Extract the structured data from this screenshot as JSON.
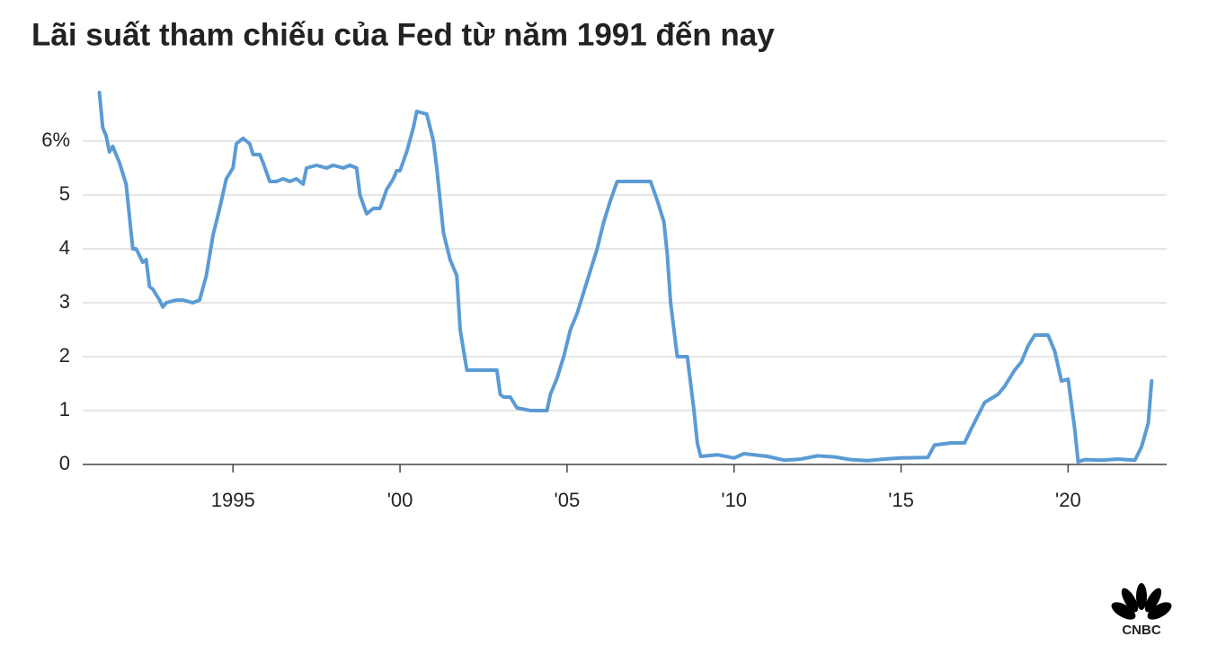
{
  "chart_data": {
    "type": "line",
    "title": "Lãi suất tham chiếu của Fed từ năm 1991 đến nay",
    "color": "#5b9bd5",
    "grid": true,
    "xlim": [
      1990.5,
      2022.95
    ],
    "xticks": [
      1995,
      {
        "value": 2000,
        "label": "'00"
      },
      {
        "value": 2005,
        "label": "'05"
      },
      {
        "value": 2010,
        "label": "'10"
      },
      {
        "value": 2015,
        "label": "'15"
      },
      {
        "value": 2020,
        "label": "'20"
      }
    ],
    "ylim": [
      0,
      7
    ],
    "yticks": [
      0,
      1,
      2,
      3,
      4,
      5,
      {
        "value": 6,
        "label": "6%"
      }
    ],
    "x": [
      1991.0,
      1991.1,
      1991.2,
      1991.3,
      1991.4,
      1991.6,
      1991.8,
      1992.0,
      1992.1,
      1992.3,
      1992.4,
      1992.5,
      1992.6,
      1992.8,
      1992.9,
      1993.0,
      1993.3,
      1993.5,
      1993.8,
      1994.0,
      1994.2,
      1994.4,
      1994.6,
      1994.8,
      1995.0,
      1995.1,
      1995.3,
      1995.5,
      1995.6,
      1995.8,
      1995.9,
      1996.1,
      1996.3,
      1996.5,
      1996.7,
      1996.9,
      1997.1,
      1997.2,
      1997.5,
      1997.8,
      1998.0,
      1998.3,
      1998.5,
      1998.7,
      1998.8,
      1999.0,
      1999.2,
      1999.4,
      1999.6,
      1999.8,
      1999.9,
      2000.0,
      2000.2,
      2000.4,
      2000.5,
      2000.8,
      2001.0,
      2001.1,
      2001.3,
      2001.5,
      2001.7,
      2001.8,
      2002.0,
      2002.3,
      2002.6,
      2002.9,
      2003.0,
      2003.1,
      2003.3,
      2003.5,
      2003.9,
      2004.4,
      2004.5,
      2004.7,
      2004.9,
      2005.1,
      2005.3,
      2005.5,
      2005.7,
      2005.9,
      2006.1,
      2006.3,
      2006.5,
      2007.0,
      2007.5,
      2007.7,
      2007.9,
      2008.0,
      2008.1,
      2008.3,
      2008.6,
      2008.8,
      2008.9,
      2009.0,
      2009.5,
      2010.0,
      2010.3,
      2011.0,
      2011.5,
      2012.0,
      2012.5,
      2013.0,
      2013.5,
      2014.0,
      2014.5,
      2015.0,
      2015.8,
      2016.0,
      2016.5,
      2016.9,
      2017.1,
      2017.5,
      2017.9,
      2018.1,
      2018.4,
      2018.6,
      2018.8,
      2019.0,
      2019.4,
      2019.6,
      2019.8,
      2020.0,
      2020.2,
      2020.3,
      2020.5,
      2021.0,
      2021.5,
      2022.0,
      2022.2,
      2022.4,
      2022.5
    ],
    "values": [
      6.9,
      6.25,
      6.1,
      5.8,
      5.9,
      5.6,
      5.2,
      4.0,
      4.0,
      3.75,
      3.8,
      3.3,
      3.25,
      3.05,
      2.92,
      3.0,
      3.05,
      3.05,
      3.0,
      3.05,
      3.5,
      4.25,
      4.75,
      5.3,
      5.5,
      5.95,
      6.05,
      5.95,
      5.75,
      5.75,
      5.6,
      5.25,
      5.25,
      5.3,
      5.25,
      5.3,
      5.2,
      5.5,
      5.55,
      5.5,
      5.55,
      5.5,
      5.55,
      5.5,
      5.0,
      4.65,
      4.75,
      4.75,
      5.1,
      5.3,
      5.45,
      5.45,
      5.8,
      6.25,
      6.55,
      6.5,
      6.0,
      5.5,
      4.3,
      3.8,
      3.5,
      2.5,
      1.75,
      1.75,
      1.75,
      1.75,
      1.3,
      1.25,
      1.25,
      1.05,
      1.0,
      1.0,
      1.3,
      1.6,
      2.0,
      2.5,
      2.8,
      3.2,
      3.6,
      4.0,
      4.5,
      4.9,
      5.25,
      5.25,
      5.25,
      4.9,
      4.5,
      3.9,
      3.0,
      2.0,
      2.0,
      1.0,
      0.4,
      0.15,
      0.18,
      0.12,
      0.2,
      0.15,
      0.08,
      0.1,
      0.16,
      0.14,
      0.09,
      0.07,
      0.1,
      0.12,
      0.13,
      0.36,
      0.4,
      0.4,
      0.66,
      1.15,
      1.3,
      1.45,
      1.75,
      1.9,
      2.2,
      2.4,
      2.4,
      2.1,
      1.55,
      1.58,
      0.65,
      0.05,
      0.09,
      0.08,
      0.1,
      0.08,
      0.33,
      0.77,
      1.55
    ]
  },
  "logo": "CNBC"
}
